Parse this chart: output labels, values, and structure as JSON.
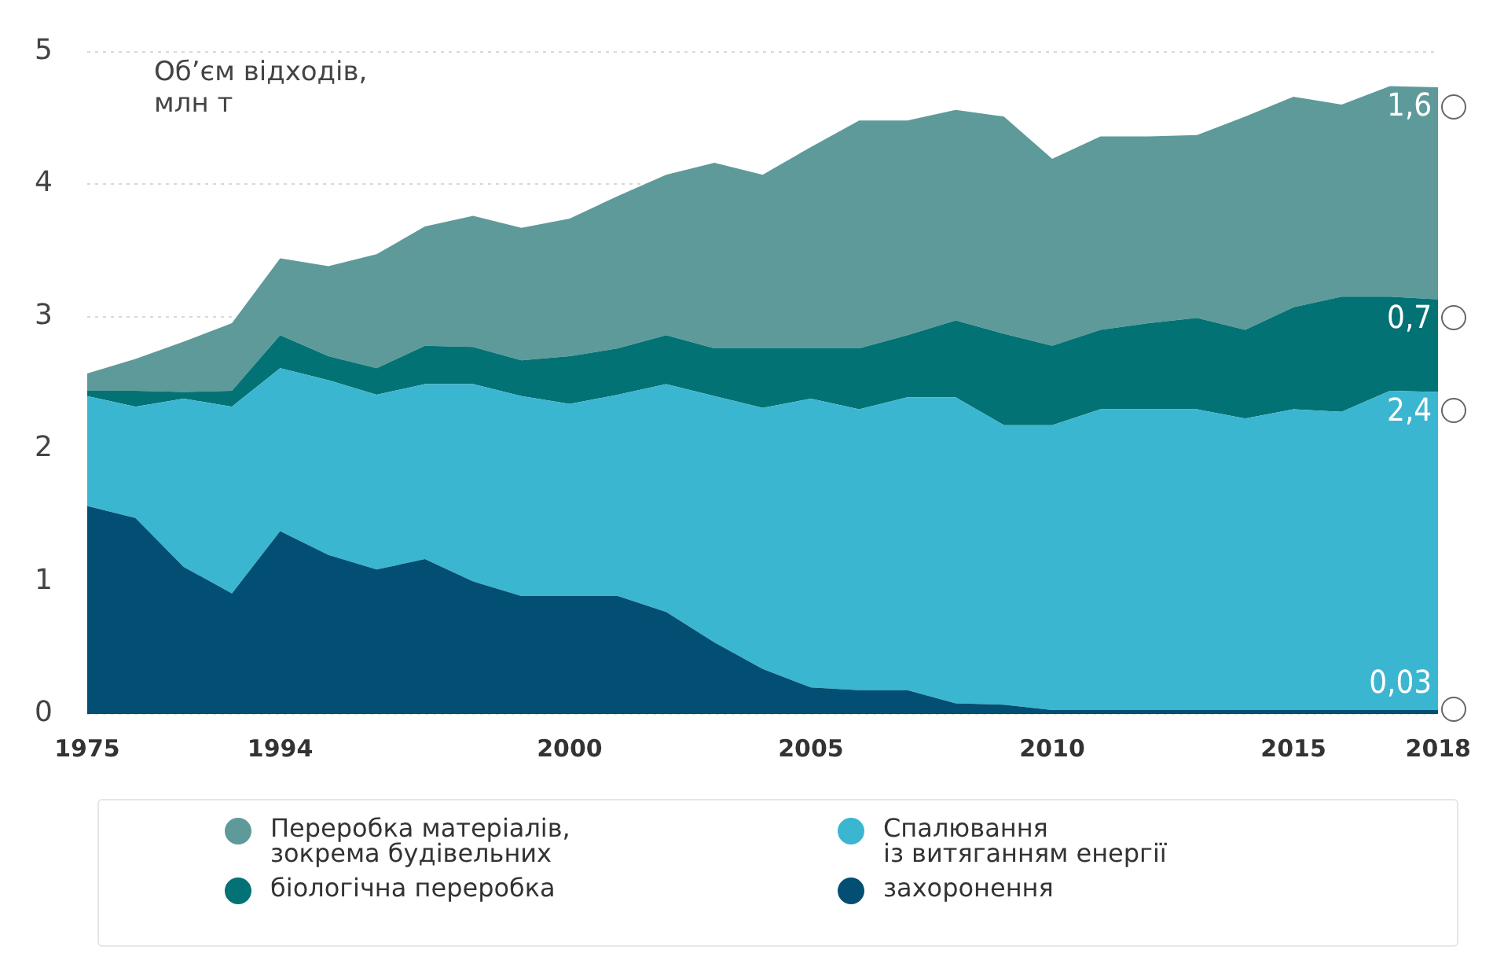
{
  "chart_data": {
    "type": "area",
    "stacked": true,
    "ylabel": "Об’єм відходів, млн т",
    "categories": [
      "1975",
      null,
      null,
      null,
      "1994",
      null,
      null,
      null,
      null,
      null,
      "2000",
      null,
      null,
      null,
      null,
      "2005",
      null,
      null,
      null,
      null,
      "2010",
      null,
      null,
      null,
      null,
      "2015",
      null,
      null,
      "2018"
    ],
    "series": [
      {
        "name": "захоронення",
        "color": "#034f73",
        "values": [
          1.57,
          1.48,
          1.11,
          0.91,
          1.38,
          1.2,
          1.09,
          1.17,
          1.0,
          0.89,
          0.89,
          0.89,
          0.77,
          0.54,
          0.34,
          0.2,
          0.18,
          0.18,
          0.08,
          0.07,
          0.03,
          0.03,
          0.03,
          0.03,
          0.03,
          0.03,
          0.03,
          0.03,
          0.03
        ],
        "value_labels": [
          null,
          null,
          null,
          null,
          null,
          null,
          null,
          null,
          null,
          null,
          null,
          null,
          null,
          null,
          null,
          null,
          null,
          null,
          null,
          null,
          null,
          null,
          null,
          null,
          null,
          null,
          null,
          null,
          "0,03"
        ]
      },
      {
        "name": "Спалювання\nіз витяганням енергії",
        "color": "#3bb6d0",
        "values": [
          0.83,
          0.84,
          1.27,
          1.41,
          1.23,
          1.32,
          1.32,
          1.32,
          1.49,
          1.51,
          1.45,
          1.52,
          1.72,
          1.86,
          1.97,
          2.18,
          2.12,
          2.21,
          2.31,
          2.11,
          2.15,
          2.27,
          2.27,
          2.27,
          2.2,
          2.27,
          2.25,
          2.41,
          2.4
        ],
        "value_labels": [
          null,
          null,
          null,
          null,
          null,
          null,
          null,
          null,
          null,
          null,
          null,
          null,
          null,
          null,
          null,
          null,
          null,
          null,
          null,
          null,
          null,
          null,
          null,
          null,
          null,
          null,
          null,
          null,
          "2,4"
        ]
      },
      {
        "name": "біологічна переробка",
        "color": "#037275",
        "values": [
          0.04,
          0.12,
          0.05,
          0.12,
          0.25,
          0.18,
          0.2,
          0.29,
          0.28,
          0.27,
          0.36,
          0.35,
          0.37,
          0.36,
          0.45,
          0.38,
          0.46,
          0.47,
          0.58,
          0.69,
          0.6,
          0.6,
          0.65,
          0.69,
          0.67,
          0.77,
          0.87,
          0.71,
          0.7
        ],
        "value_labels": [
          null,
          null,
          null,
          null,
          null,
          null,
          null,
          null,
          null,
          null,
          null,
          null,
          null,
          null,
          null,
          null,
          null,
          null,
          null,
          null,
          null,
          null,
          null,
          null,
          null,
          null,
          null,
          null,
          "0,7"
        ]
      },
      {
        "name": "Переробка матеріалів,\nзокрема будівельних",
        "color": "#5e9a9a",
        "values": [
          0.13,
          0.24,
          0.38,
          0.51,
          0.58,
          0.68,
          0.86,
          0.9,
          0.99,
          1.0,
          1.04,
          1.15,
          1.21,
          1.4,
          1.31,
          1.52,
          1.72,
          1.62,
          1.59,
          1.64,
          1.41,
          1.46,
          1.41,
          1.38,
          1.61,
          1.59,
          1.45,
          1.59,
          1.6
        ],
        "value_labels": [
          null,
          null,
          null,
          null,
          null,
          null,
          null,
          null,
          null,
          null,
          null,
          null,
          null,
          null,
          null,
          null,
          null,
          null,
          null,
          null,
          null,
          null,
          null,
          null,
          null,
          null,
          null,
          null,
          "1,6"
        ]
      }
    ],
    "ylim": [
      0,
      5
    ],
    "yticks": [
      0,
      1,
      2,
      3,
      4,
      5
    ],
    "grid": "y",
    "legend": "bottom",
    "marker": "none"
  }
}
